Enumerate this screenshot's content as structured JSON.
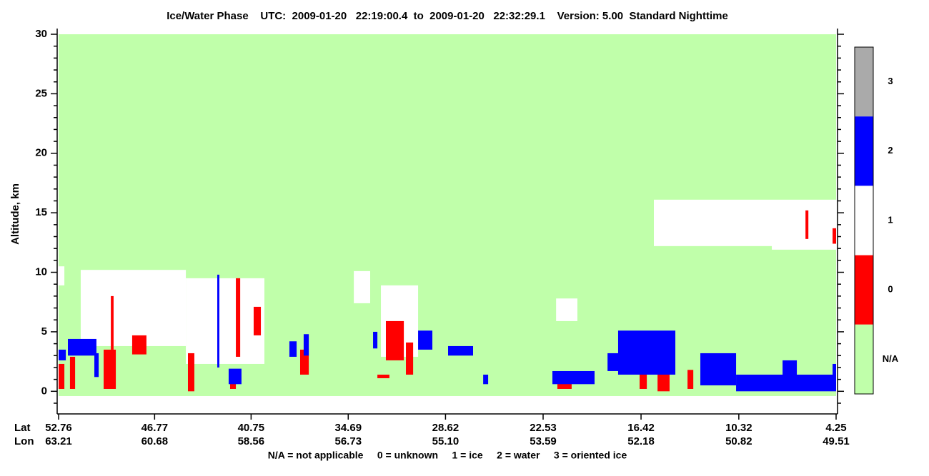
{
  "chart_data": {
    "type": "curtain",
    "title": "Ice/Water Phase    UTC:  2009-01-20   22:19:00.4  to  2009-01-20   22:32:29.1    Version: 5.00  Standard Nighttime",
    "y_label": "Altitude, km",
    "ylim": [
      -1.9,
      30
    ],
    "yticks": [
      0,
      5,
      10,
      15,
      20,
      25,
      30
    ],
    "yminorticks": [
      -1,
      1,
      2,
      3,
      4,
      6,
      7,
      8,
      9,
      11,
      12,
      13,
      14,
      16,
      17,
      18,
      19,
      21,
      22,
      23,
      24,
      26,
      27,
      28,
      29
    ],
    "xlim": [
      52.76,
      4.25
    ],
    "x_row_labels": [
      "Lat",
      "Lon"
    ],
    "xticks": [
      52.76,
      46.77,
      40.75,
      34.69,
      28.62,
      22.53,
      16.42,
      10.32,
      4.25
    ],
    "lon_labels": [
      "63.21",
      "60.68",
      "58.56",
      "56.73",
      "55.10",
      "53.59",
      "52.18",
      "50.82",
      "49.51"
    ],
    "footnote": "N/A = not applicable     0 = unknown     1 = ice     2 = water     3 = oriented ice",
    "legend": [
      {
        "label": "3",
        "color": "#aaaaaa"
      },
      {
        "label": "2",
        "color": "#0000ff"
      },
      {
        "label": "1",
        "color": "#ffffff"
      },
      {
        "label": "0",
        "color": "#ff0000"
      },
      {
        "label": "N/A",
        "color": "#c0ffaa"
      }
    ],
    "regions": [
      {
        "class": "N/A",
        "lat": [
          52.76,
          4.25
        ],
        "alt": [
          -0.4,
          30
        ]
      },
      {
        "class": "1",
        "lat": [
          51.38,
          44.82
        ],
        "alt": [
          3.8,
          10.2
        ]
      },
      {
        "class": "1",
        "lat": [
          44.82,
          39.92
        ],
        "alt": [
          2.3,
          9.5
        ]
      },
      {
        "class": "1",
        "lat": [
          52.76,
          52.4
        ],
        "alt": [
          8.9,
          10.5
        ]
      },
      {
        "class": "1",
        "lat": [
          34.34,
          33.32
        ],
        "alt": [
          7.4,
          10.1
        ]
      },
      {
        "class": "1",
        "lat": [
          32.65,
          30.33
        ],
        "alt": [
          2.9,
          8.9
        ]
      },
      {
        "class": "1",
        "lat": [
          21.72,
          20.39
        ],
        "alt": [
          5.9,
          7.8
        ]
      },
      {
        "class": "1",
        "lat": [
          15.62,
          4.25
        ],
        "alt": [
          12.2,
          16.1
        ]
      },
      {
        "class": "1",
        "lat": [
          8.26,
          4.25
        ],
        "alt": [
          11.9,
          13.1
        ]
      },
      {
        "class": "0",
        "lat": [
          52.76,
          52.4
        ],
        "alt": [
          0.2,
          2.3
        ]
      },
      {
        "class": "0",
        "lat": [
          52.05,
          51.73
        ],
        "alt": [
          0.2,
          2.9
        ]
      },
      {
        "class": "0",
        "lat": [
          49.95,
          49.19
        ],
        "alt": [
          0.2,
          3.5
        ]
      },
      {
        "class": "0",
        "lat": [
          49.5,
          49.33
        ],
        "alt": [
          3.5,
          8.0
        ]
      },
      {
        "class": "0",
        "lat": [
          48.17,
          47.28
        ],
        "alt": [
          3.1,
          4.7
        ]
      },
      {
        "class": "0",
        "lat": [
          44.69,
          44.29
        ],
        "alt": [
          0,
          3.2
        ]
      },
      {
        "class": "0",
        "lat": [
          42.06,
          41.7
        ],
        "alt": [
          0.2,
          1.7
        ]
      },
      {
        "class": "0",
        "lat": [
          41.7,
          41.43
        ],
        "alt": [
          2.9,
          9.5
        ]
      },
      {
        "class": "0",
        "lat": [
          40.59,
          40.14
        ],
        "alt": [
          4.7,
          7.1
        ]
      },
      {
        "class": "0",
        "lat": [
          37.69,
          37.15
        ],
        "alt": [
          1.4,
          3.5
        ]
      },
      {
        "class": "0",
        "lat": [
          32.87,
          32.12
        ],
        "alt": [
          1.1,
          1.4
        ]
      },
      {
        "class": "0",
        "lat": [
          32.34,
          31.22
        ],
        "alt": [
          2.6,
          5.9
        ]
      },
      {
        "class": "0",
        "lat": [
          31.09,
          30.64
        ],
        "alt": [
          1.4,
          4.1
        ]
      },
      {
        "class": "0",
        "lat": [
          21.64,
          20.75
        ],
        "alt": [
          0.2,
          0.9
        ]
      },
      {
        "class": "0",
        "lat": [
          16.51,
          16.06
        ],
        "alt": [
          0.2,
          2.3
        ]
      },
      {
        "class": "0",
        "lat": [
          15.39,
          14.64
        ],
        "alt": [
          0,
          1.7
        ]
      },
      {
        "class": "0",
        "lat": [
          13.52,
          13.16
        ],
        "alt": [
          0.2,
          1.8
        ]
      },
      {
        "class": "0",
        "lat": [
          6.16,
          5.98
        ],
        "alt": [
          12.8,
          15.2
        ]
      },
      {
        "class": "0",
        "lat": [
          4.47,
          4.25
        ],
        "alt": [
          12.4,
          13.7
        ]
      },
      {
        "class": "2",
        "lat": [
          52.76,
          52.31
        ],
        "alt": [
          2.6,
          3.5
        ]
      },
      {
        "class": "2",
        "lat": [
          52.18,
          50.4
        ],
        "alt": [
          3.0,
          4.4
        ]
      },
      {
        "class": "2",
        "lat": [
          50.53,
          50.26
        ],
        "alt": [
          1.2,
          3.2
        ]
      },
      {
        "class": "2",
        "lat": [
          42.86,
          42.73
        ],
        "alt": [
          2.0,
          9.8
        ]
      },
      {
        "class": "2",
        "lat": [
          42.15,
          41.35
        ],
        "alt": [
          0.6,
          1.9
        ]
      },
      {
        "class": "2",
        "lat": [
          38.36,
          37.91
        ],
        "alt": [
          2.9,
          4.2
        ]
      },
      {
        "class": "2",
        "lat": [
          37.47,
          37.15
        ],
        "alt": [
          3.0,
          4.8
        ]
      },
      {
        "class": "2",
        "lat": [
          33.14,
          32.87
        ],
        "alt": [
          3.6,
          5.0
        ]
      },
      {
        "class": "2",
        "lat": [
          30.33,
          29.44
        ],
        "alt": [
          3.5,
          5.1
        ]
      },
      {
        "class": "2",
        "lat": [
          28.46,
          26.9
        ],
        "alt": [
          3.0,
          3.8
        ]
      },
      {
        "class": "2",
        "lat": [
          26.27,
          25.96
        ],
        "alt": [
          0.6,
          1.4
        ]
      },
      {
        "class": "2",
        "lat": [
          21.95,
          19.32
        ],
        "alt": [
          0.6,
          1.7
        ]
      },
      {
        "class": "2",
        "lat": [
          18.51,
          17.62
        ],
        "alt": [
          1.7,
          3.2
        ]
      },
      {
        "class": "2",
        "lat": [
          17.85,
          14.28
        ],
        "alt": [
          1.4,
          5.1
        ]
      },
      {
        "class": "2",
        "lat": [
          12.72,
          10.49
        ],
        "alt": [
          0.5,
          3.2
        ]
      },
      {
        "class": "2",
        "lat": [
          10.49,
          4.25
        ],
        "alt": [
          0,
          1.4
        ]
      },
      {
        "class": "2",
        "lat": [
          7.59,
          6.7
        ],
        "alt": [
          1.1,
          2.6
        ]
      },
      {
        "class": "2",
        "lat": [
          4.47,
          4.25
        ],
        "alt": [
          0.8,
          2.3
        ]
      }
    ]
  }
}
